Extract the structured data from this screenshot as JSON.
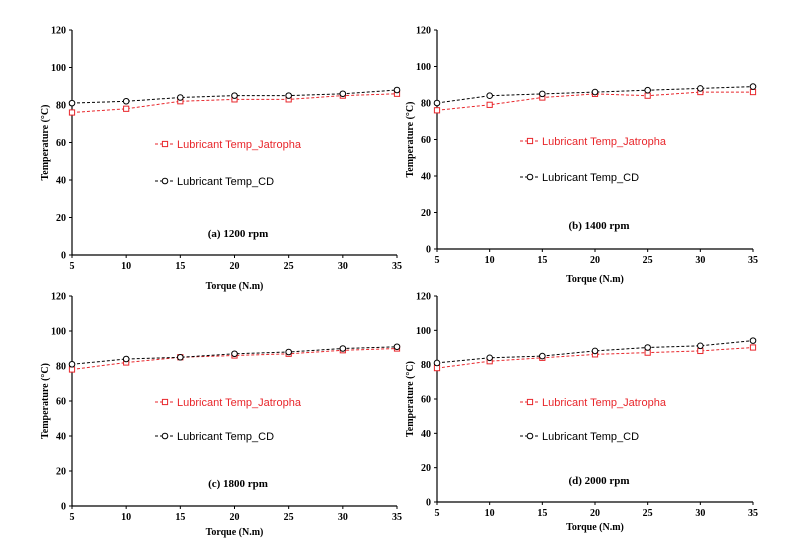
{
  "chart_data": [
    {
      "type": "line",
      "caption": "(a) 1200 rpm",
      "xlabel": "Torque  (N.m)",
      "ylabel": "Temperature  (°C)",
      "xlim": [
        5,
        35
      ],
      "ylim": [
        0,
        120
      ],
      "x_ticks": [
        "5",
        "10",
        "15",
        "20",
        "25",
        "30",
        "35"
      ],
      "y_ticks": [
        "0",
        "20",
        "40",
        "60",
        "80",
        "100",
        "120"
      ],
      "x": [
        5,
        10,
        15,
        20,
        25,
        30,
        35
      ],
      "series": [
        {
          "name": "Lubricant Temp_Jatropha",
          "color": "#e8262b",
          "marker": "square",
          "values": [
            76,
            78,
            82,
            83,
            83,
            85,
            86
          ]
        },
        {
          "name": "Lubricant Temp_CD",
          "color": "#000000",
          "marker": "circle",
          "values": [
            81,
            82,
            84,
            85,
            85,
            86,
            88
          ]
        }
      ]
    },
    {
      "type": "line",
      "caption": "(b) 1400 rpm",
      "xlabel": "Torque (N.m)",
      "ylabel": "Temperature  (°C)",
      "xlim": [
        5,
        35
      ],
      "ylim": [
        0,
        120
      ],
      "x_ticks": [
        "5",
        "10",
        "15",
        "20",
        "25",
        "30",
        "35"
      ],
      "y_ticks": [
        "0",
        "20",
        "40",
        "60",
        "80",
        "100",
        "120"
      ],
      "x": [
        5,
        10,
        15,
        20,
        25,
        30,
        35
      ],
      "series": [
        {
          "name": "Lubricant Temp_Jatropha",
          "color": "#e8262b",
          "marker": "square",
          "values": [
            76,
            79,
            83,
            85,
            84,
            86,
            86
          ]
        },
        {
          "name": "Lubricant Temp_CD",
          "color": "#000000",
          "marker": "circle",
          "values": [
            80,
            84,
            85,
            86,
            87,
            88,
            89
          ]
        }
      ]
    },
    {
      "type": "line",
      "caption": "(c) 1800 rpm",
      "xlabel": "Torque  (N.m)",
      "ylabel": "Temperature  (°C)",
      "xlim": [
        5,
        35
      ],
      "ylim": [
        0,
        120
      ],
      "x_ticks": [
        "5",
        "10",
        "15",
        "20",
        "25",
        "30",
        "35"
      ],
      "y_ticks": [
        "0",
        "20",
        "40",
        "60",
        "80",
        "100",
        "120"
      ],
      "x": [
        5,
        10,
        15,
        20,
        25,
        30,
        35
      ],
      "series": [
        {
          "name": "Lubricant Temp_Jatropha",
          "color": "#e8262b",
          "marker": "square",
          "values": [
            78,
            82,
            85,
            86,
            87,
            89,
            90
          ]
        },
        {
          "name": "Lubricant Temp_CD",
          "color": "#000000",
          "marker": "circle",
          "values": [
            81,
            84,
            85,
            87,
            88,
            90,
            91
          ]
        }
      ]
    },
    {
      "type": "line",
      "caption": "(d) 2000 rpm",
      "xlabel": "Torque  (N.m)",
      "ylabel": "Temperature  (°C)",
      "xlim": [
        5,
        35
      ],
      "ylim": [
        0,
        120
      ],
      "x_ticks": [
        "5",
        "10",
        "15",
        "20",
        "25",
        "30",
        "35"
      ],
      "y_ticks": [
        "0",
        "20",
        "40",
        "60",
        "80",
        "100",
        "120"
      ],
      "x": [
        5,
        10,
        15,
        20,
        25,
        30,
        35
      ],
      "series": [
        {
          "name": "Lubricant Temp_Jatropha",
          "color": "#e8262b",
          "marker": "square",
          "values": [
            78,
            82,
            84,
            86,
            87,
            88,
            90
          ]
        },
        {
          "name": "Lubricant Temp_CD",
          "color": "#000000",
          "marker": "circle",
          "values": [
            81,
            84,
            85,
            88,
            90,
            91,
            94
          ]
        }
      ]
    }
  ]
}
